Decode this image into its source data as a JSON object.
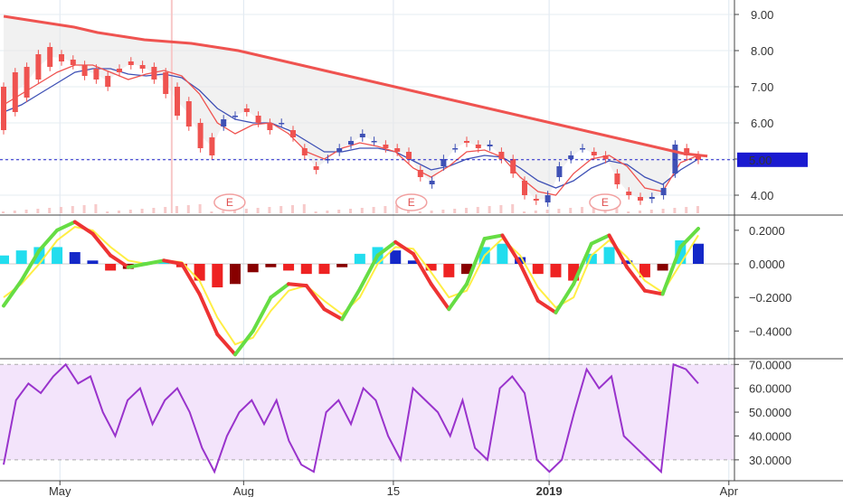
{
  "colors": {
    "price_up": "#3f51b5",
    "price_down": "#ef5350",
    "ma200": "#ef5350",
    "cloud": "#e8e8e8",
    "macd_green": "#66dd44",
    "macd_red": "#ee3333",
    "macd_yellow": "#ffee44",
    "hist_pos_dark": "#1428c8",
    "hist_pos_light": "#22ddee",
    "hist_neg_dark": "#880000",
    "hist_neg_light": "#ee2222",
    "rsi_line": "#9933cc",
    "rsi_band": "#f3e4fb",
    "current_price_bg": "#1a1ad0"
  },
  "chart_data": [
    {
      "type": "candlestick",
      "panel": "price",
      "y_ticks": [
        "9.00",
        "8.00",
        "7.00",
        "6.00",
        "5.00",
        "4.00"
      ],
      "ylim": [
        3.5,
        9.4
      ],
      "current_price_label": "5.00",
      "current_price": 4.98,
      "earnings_markers": [
        "E",
        "E",
        "E"
      ],
      "earnings_dates": [
        "2018-07-25",
        "2018-10-24",
        "2019-01-29"
      ],
      "date_start": "2018-04-01",
      "date_end": "2019-04-02",
      "close": [
        [
          7.0,
          5.8
        ],
        [
          7.4,
          6.3
        ],
        [
          7.55,
          6.7
        ],
        [
          7.9,
          7.2
        ],
        [
          8.1,
          7.55
        ],
        [
          7.9,
          7.7
        ],
        [
          7.75,
          7.6
        ],
        [
          7.6,
          7.3
        ],
        [
          7.5,
          7.2
        ],
        [
          7.3,
          7.0
        ],
        [
          7.5,
          7.4
        ],
        [
          7.7,
          7.6
        ],
        [
          7.6,
          7.5
        ],
        [
          7.55,
          7.2
        ],
        [
          7.4,
          6.8
        ],
        [
          7.0,
          6.2
        ],
        [
          6.6,
          5.9
        ],
        [
          6.0,
          5.3
        ],
        [
          5.6,
          5.1
        ],
        [
          5.9,
          6.1
        ],
        [
          6.2,
          6.2
        ],
        [
          6.4,
          6.3
        ],
        [
          6.2,
          6.0
        ],
        [
          6.0,
          5.8
        ],
        [
          6.0,
          6.0
        ],
        [
          5.8,
          5.6
        ],
        [
          5.3,
          5.1
        ],
        [
          4.8,
          4.7
        ],
        [
          5.0,
          5.0
        ],
        [
          5.2,
          5.3
        ],
        [
          5.4,
          5.5
        ],
        [
          5.6,
          5.7
        ],
        [
          5.5,
          5.5
        ],
        [
          5.4,
          5.3
        ],
        [
          5.3,
          5.2
        ],
        [
          5.2,
          5.0
        ],
        [
          4.7,
          4.5
        ],
        [
          4.3,
          4.4
        ],
        [
          4.8,
          5.0
        ],
        [
          5.3,
          5.3
        ],
        [
          5.5,
          5.45
        ],
        [
          5.4,
          5.3
        ],
        [
          5.35,
          5.4
        ],
        [
          5.2,
          5.0
        ],
        [
          5.0,
          4.6
        ],
        [
          4.4,
          4.0
        ],
        [
          3.9,
          3.85
        ],
        [
          3.8,
          4.0
        ],
        [
          4.5,
          4.8
        ],
        [
          5.0,
          5.1
        ],
        [
          5.3,
          5.3
        ],
        [
          5.2,
          5.1
        ],
        [
          5.1,
          5.0
        ],
        [
          4.6,
          4.3
        ],
        [
          4.1,
          4.0
        ],
        [
          3.95,
          3.85
        ],
        [
          3.9,
          3.95
        ],
        [
          4.0,
          4.2
        ],
        [
          4.6,
          5.4
        ],
        [
          5.3,
          5.1
        ],
        [
          5.1,
          4.98
        ]
      ],
      "ma200": [
        8.95,
        8.85,
        8.75,
        8.65,
        8.5,
        8.4,
        8.3,
        8.25,
        8.2,
        8.1,
        8.0,
        7.85,
        7.7,
        7.55,
        7.4,
        7.25,
        7.1,
        6.95,
        6.8,
        6.65,
        6.5,
        6.35,
        6.2,
        6.05,
        5.9,
        5.75,
        5.6,
        5.45,
        5.3,
        5.15,
        5.08
      ],
      "ma_fast": [
        6.5,
        6.8,
        7.1,
        7.4,
        7.6,
        7.6,
        7.4,
        7.2,
        7.35,
        7.45,
        7.3,
        6.8,
        6.0,
        5.7,
        5.95,
        6.0,
        5.7,
        5.2,
        5.0,
        5.3,
        5.45,
        5.35,
        5.2,
        4.75,
        4.5,
        4.8,
        5.2,
        5.25,
        5.05,
        4.5,
        4.1,
        4.0,
        4.6,
        5.0,
        5.1,
        4.8,
        4.2,
        4.1,
        4.9,
        5.1
      ],
      "ma_slow": [
        6.3,
        6.5,
        6.8,
        7.1,
        7.4,
        7.5,
        7.5,
        7.35,
        7.3,
        7.35,
        7.25,
        6.9,
        6.4,
        6.1,
        6.0,
        6.0,
        5.8,
        5.5,
        5.2,
        5.2,
        5.3,
        5.3,
        5.2,
        4.95,
        4.7,
        4.8,
        5.0,
        5.1,
        5.05,
        4.75,
        4.4,
        4.2,
        4.4,
        4.75,
        4.95,
        4.85,
        4.5,
        4.3,
        4.7,
        5.0
      ]
    },
    {
      "type": "macd",
      "panel": "macd",
      "y_ticks": [
        "0.2000",
        "0.0000",
        "−0.2000",
        "−0.4000"
      ],
      "ylim": [
        -0.56,
        0.28
      ],
      "line": [
        -0.25,
        -0.1,
        0.08,
        0.2,
        0.25,
        0.18,
        0.05,
        -0.02,
        0.0,
        0.02,
        0.0,
        -0.18,
        -0.42,
        -0.54,
        -0.4,
        -0.2,
        -0.12,
        -0.13,
        -0.27,
        -0.33,
        -0.15,
        0.05,
        0.13,
        0.06,
        -0.12,
        -0.27,
        -0.12,
        0.15,
        0.17,
        0.0,
        -0.22,
        -0.29,
        -0.12,
        0.12,
        0.17,
        -0.02,
        -0.16,
        -0.18,
        0.1,
        0.21
      ],
      "signal": [
        -0.2,
        -0.12,
        0.0,
        0.14,
        0.22,
        0.2,
        0.1,
        0.02,
        0.0,
        0.02,
        0.01,
        -0.1,
        -0.32,
        -0.48,
        -0.44,
        -0.28,
        -0.16,
        -0.13,
        -0.22,
        -0.3,
        -0.2,
        0.0,
        0.1,
        0.09,
        -0.05,
        -0.2,
        -0.16,
        0.05,
        0.15,
        0.05,
        -0.14,
        -0.26,
        -0.2,
        0.05,
        0.14,
        0.04,
        -0.1,
        -0.17,
        0.0,
        0.17
      ],
      "histogram": [
        0.05,
        0.08,
        0.1,
        0.1,
        0.07,
        0.02,
        -0.04,
        -0.03,
        0.01,
        0.02,
        -0.02,
        -0.1,
        -0.14,
        -0.12,
        -0.05,
        -0.02,
        -0.04,
        -0.06,
        -0.06,
        -0.02,
        0.06,
        0.1,
        0.08,
        0.02,
        -0.04,
        -0.08,
        -0.06,
        0.1,
        0.12,
        0.04,
        -0.06,
        -0.08,
        -0.1,
        0.06,
        0.1,
        0.02,
        -0.08,
        -0.04,
        0.14,
        0.12
      ]
    },
    {
      "type": "line",
      "panel": "rsi",
      "y_ticks": [
        "70.0000",
        "60.0000",
        "50.0000",
        "40.0000",
        "30.0000"
      ],
      "ylim": [
        22,
        72
      ],
      "band": [
        30,
        70
      ],
      "values": [
        28,
        55,
        62,
        58,
        65,
        70,
        62,
        65,
        50,
        40,
        55,
        60,
        45,
        55,
        60,
        50,
        35,
        25,
        40,
        50,
        55,
        45,
        55,
        38,
        28,
        25,
        50,
        55,
        45,
        60,
        55,
        40,
        30,
        60,
        55,
        50,
        40,
        55,
        35,
        30,
        60,
        65,
        58,
        30,
        25,
        30,
        50,
        68,
        60,
        65,
        40,
        35,
        30,
        25,
        70,
        68,
        62
      ]
    }
  ],
  "x_axis": {
    "labels": [
      {
        "text": "May",
        "date": "2018-05-01",
        "bold": false
      },
      {
        "text": "Aug",
        "date": "2018-08-01",
        "bold": false
      },
      {
        "text": "15",
        "date": "2018-10-15",
        "bold": false
      },
      {
        "text": "2019",
        "date": "2019-01-01",
        "bold": true
      },
      {
        "text": "Apr",
        "date": "2019-04-01",
        "bold": false
      }
    ]
  }
}
